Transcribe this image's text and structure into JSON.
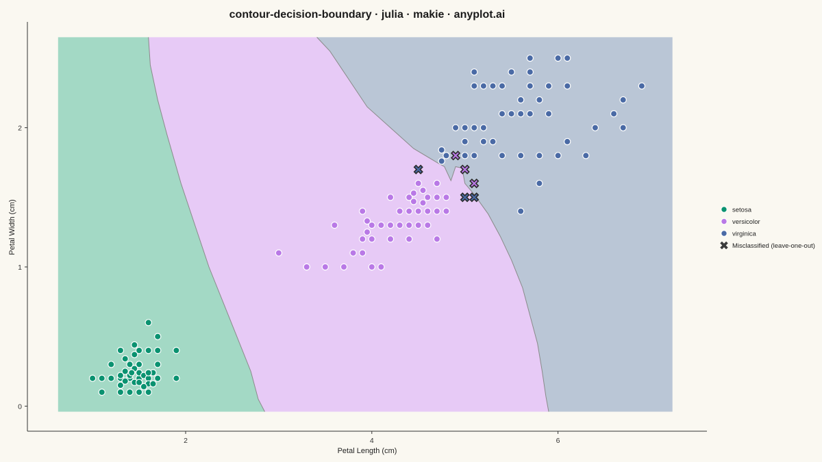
{
  "chart_data": {
    "type": "scatter",
    "title": "contour-decision-boundary · julia · makie · anyplot.ai",
    "xlabel": "Petal Length (cm)",
    "ylabel": "Petal Width (cm)",
    "xlim": [
      0.3,
      7.6
    ],
    "ylim": [
      -0.18,
      2.76
    ],
    "region_range": {
      "x": [
        0.63,
        7.23
      ],
      "y": [
        -0.04,
        2.65
      ]
    },
    "xticks": [
      2,
      4,
      6
    ],
    "yticks": [
      0,
      1,
      2
    ],
    "grid": false,
    "legend_position": "right",
    "colors": {
      "setosa_point": "#0a9270",
      "versicolor_point": "#b979e6",
      "virginica_point": "#4a6aa5",
      "setosa_region": "#a3d9c5",
      "versicolor_region": "#e7caf6",
      "virginica_region": "#bac6d6",
      "boundary": "#8a8a8a",
      "marker_edge": "#ffffff",
      "misclassified_edge": "#2a2a2a"
    },
    "boundaries": {
      "setosa_versicolor": [
        [
          1.6,
          2.65
        ],
        [
          1.62,
          2.45
        ],
        [
          1.7,
          2.2
        ],
        [
          1.8,
          1.95
        ],
        [
          1.95,
          1.6
        ],
        [
          2.1,
          1.3
        ],
        [
          2.25,
          1.0
        ],
        [
          2.4,
          0.75
        ],
        [
          2.55,
          0.5
        ],
        [
          2.7,
          0.25
        ],
        [
          2.78,
          0.05
        ],
        [
          2.85,
          -0.04
        ]
      ],
      "versicolor_virginica": [
        [
          3.41,
          2.65
        ],
        [
          3.55,
          2.55
        ],
        [
          3.75,
          2.35
        ],
        [
          3.95,
          2.15
        ],
        [
          4.2,
          2.0
        ],
        [
          4.45,
          1.85
        ],
        [
          4.7,
          1.75
        ],
        [
          4.78,
          1.72
        ],
        [
          4.85,
          1.62
        ],
        [
          4.9,
          1.72
        ],
        [
          4.97,
          1.71
        ],
        [
          5.0,
          1.6
        ],
        [
          5.1,
          1.52
        ],
        [
          5.25,
          1.38
        ],
        [
          5.38,
          1.22
        ],
        [
          5.5,
          1.05
        ],
        [
          5.62,
          0.85
        ],
        [
          5.7,
          0.65
        ],
        [
          5.78,
          0.45
        ],
        [
          5.83,
          0.25
        ],
        [
          5.87,
          0.07
        ],
        [
          5.9,
          -0.04
        ]
      ]
    },
    "series": [
      {
        "name": "setosa",
        "points": [
          [
            1.0,
            0.2
          ],
          [
            1.1,
            0.2
          ],
          [
            1.1,
            0.1
          ],
          [
            1.2,
            0.2
          ],
          [
            1.2,
            0.3
          ],
          [
            1.3,
            0.2
          ],
          [
            1.3,
            0.4
          ],
          [
            1.3,
            0.15
          ],
          [
            1.3,
            0.1
          ],
          [
            1.35,
            0.25
          ],
          [
            1.35,
            0.34
          ],
          [
            1.4,
            0.2
          ],
          [
            1.4,
            0.1
          ],
          [
            1.4,
            0.22
          ],
          [
            1.4,
            0.3
          ],
          [
            1.45,
            0.17
          ],
          [
            1.45,
            0.27
          ],
          [
            1.45,
            0.37
          ],
          [
            1.45,
            0.44
          ],
          [
            1.5,
            0.2
          ],
          [
            1.5,
            0.1
          ],
          [
            1.5,
            0.17
          ],
          [
            1.5,
            0.24
          ],
          [
            1.5,
            0.3
          ],
          [
            1.5,
            0.4
          ],
          [
            1.55,
            0.22
          ],
          [
            1.6,
            0.2
          ],
          [
            1.6,
            0.16
          ],
          [
            1.6,
            0.4
          ],
          [
            1.6,
            0.6
          ],
          [
            1.6,
            0.1
          ],
          [
            1.65,
            0.24
          ],
          [
            1.65,
            0.16
          ],
          [
            1.7,
            0.3
          ],
          [
            1.7,
            0.4
          ],
          [
            1.7,
            0.5
          ],
          [
            1.7,
            0.2
          ],
          [
            1.9,
            0.4
          ],
          [
            1.9,
            0.2
          ],
          [
            1.35,
            0.18
          ],
          [
            1.55,
            0.14
          ],
          [
            1.6,
            0.24
          ],
          [
            1.3,
            0.22
          ],
          [
            1.42,
            0.24
          ],
          [
            1.5,
            0.3
          ]
        ]
      },
      {
        "name": "versicolor",
        "points": [
          [
            3.0,
            1.1
          ],
          [
            3.3,
            1.0
          ],
          [
            3.3,
            1.0
          ],
          [
            3.5,
            1.0
          ],
          [
            3.7,
            1.0
          ],
          [
            3.6,
            1.3
          ],
          [
            3.8,
            1.1
          ],
          [
            3.9,
            1.1
          ],
          [
            3.9,
            1.2
          ],
          [
            3.9,
            1.4
          ],
          [
            4.0,
            1.0
          ],
          [
            4.1,
            1.0
          ],
          [
            3.95,
            1.25
          ],
          [
            3.95,
            1.33
          ],
          [
            4.0,
            1.2
          ],
          [
            4.0,
            1.3
          ],
          [
            4.1,
            1.3
          ],
          [
            4.2,
            1.2
          ],
          [
            4.2,
            1.3
          ],
          [
            4.2,
            1.5
          ],
          [
            4.3,
            1.3
          ],
          [
            4.3,
            1.4
          ],
          [
            4.4,
            1.2
          ],
          [
            4.4,
            1.3
          ],
          [
            4.4,
            1.4
          ],
          [
            4.4,
            1.5
          ],
          [
            4.45,
            1.47
          ],
          [
            4.45,
            1.53
          ],
          [
            4.5,
            1.3
          ],
          [
            4.5,
            1.4
          ],
          [
            4.5,
            1.6
          ],
          [
            4.55,
            1.46
          ],
          [
            4.55,
            1.55
          ],
          [
            4.6,
            1.3
          ],
          [
            4.6,
            1.4
          ],
          [
            4.6,
            1.5
          ],
          [
            4.7,
            1.2
          ],
          [
            4.7,
            1.4
          ],
          [
            4.7,
            1.5
          ],
          [
            4.7,
            1.6
          ],
          [
            4.8,
            1.4
          ],
          [
            4.8,
            1.5
          ],
          [
            4.8,
            1.8
          ]
        ]
      },
      {
        "name": "virginica",
        "points": [
          [
            4.75,
            1.76
          ],
          [
            4.75,
            1.84
          ],
          [
            4.8,
            1.8
          ],
          [
            4.9,
            2.0
          ],
          [
            5.0,
            2.0
          ],
          [
            5.0,
            1.9
          ],
          [
            5.0,
            1.8
          ],
          [
            5.1,
            2.0
          ],
          [
            5.1,
            1.8
          ],
          [
            5.1,
            2.3
          ],
          [
            5.1,
            2.4
          ],
          [
            5.2,
            2.0
          ],
          [
            5.2,
            2.3
          ],
          [
            5.2,
            1.9
          ],
          [
            5.3,
            1.9
          ],
          [
            5.3,
            2.3
          ],
          [
            5.4,
            2.1
          ],
          [
            5.4,
            2.3
          ],
          [
            5.4,
            1.8
          ],
          [
            5.5,
            2.1
          ],
          [
            5.5,
            2.4
          ],
          [
            5.6,
            1.4
          ],
          [
            5.6,
            1.8
          ],
          [
            5.6,
            2.1
          ],
          [
            5.6,
            2.2
          ],
          [
            5.7,
            2.1
          ],
          [
            5.7,
            2.3
          ],
          [
            5.7,
            2.4
          ],
          [
            5.7,
            2.5
          ],
          [
            5.8,
            1.6
          ],
          [
            5.8,
            1.8
          ],
          [
            5.8,
            2.2
          ],
          [
            5.9,
            2.1
          ],
          [
            5.9,
            2.3
          ],
          [
            6.0,
            1.8
          ],
          [
            6.0,
            2.5
          ],
          [
            6.1,
            1.9
          ],
          [
            6.1,
            2.3
          ],
          [
            6.1,
            2.5
          ],
          [
            6.3,
            1.8
          ],
          [
            6.4,
            2.0
          ],
          [
            6.6,
            2.1
          ],
          [
            6.7,
            2.0
          ],
          [
            6.7,
            2.2
          ],
          [
            6.9,
            2.3
          ]
        ]
      },
      {
        "name": "Misclassified (leave-one-out)",
        "points": [
          {
            "x": 4.5,
            "y": 1.7,
            "class": "virginica"
          },
          {
            "x": 4.9,
            "y": 1.8,
            "class": "versicolor"
          },
          {
            "x": 5.0,
            "y": 1.7,
            "class": "versicolor"
          },
          {
            "x": 5.1,
            "y": 1.6,
            "class": "versicolor"
          },
          {
            "x": 5.0,
            "y": 1.5,
            "class": "virginica"
          },
          {
            "x": 5.1,
            "y": 1.5,
            "class": "virginica"
          }
        ]
      }
    ],
    "legend": [
      {
        "label": "setosa",
        "marker": "circle",
        "color": "#0a9270"
      },
      {
        "label": "versicolor",
        "marker": "circle",
        "color": "#b979e6"
      },
      {
        "label": "virginica",
        "marker": "circle",
        "color": "#4a6aa5"
      },
      {
        "label": "Misclassified (leave-one-out)",
        "marker": "x",
        "color": "#3b3b3b"
      }
    ]
  }
}
